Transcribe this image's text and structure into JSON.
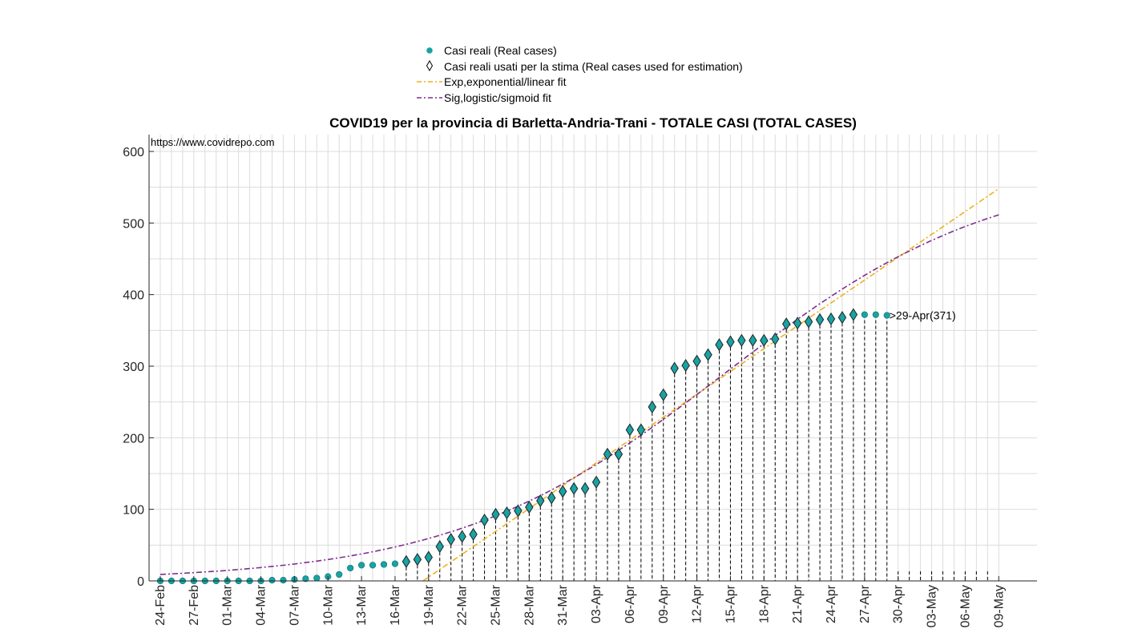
{
  "chart_data": {
    "type": "scatter",
    "title": "COVID19 per la provincia di Barletta-Andria-Trani - TOTALE CASI (TOTAL CASES)",
    "source": "https://www.covidrepo.com",
    "xlabel": "",
    "ylabel": "",
    "ylim": [
      0,
      600
    ],
    "yticks": [
      0,
      100,
      200,
      300,
      400,
      500,
      600
    ],
    "x_start_day": 0,
    "x_end_day": 75,
    "xtick_labels": [
      "24-Feb",
      "27-Feb",
      "01-Mar",
      "04-Mar",
      "07-Mar",
      "10-Mar",
      "13-Mar",
      "16-Mar",
      "19-Mar",
      "22-Mar",
      "25-Mar",
      "28-Mar",
      "31-Mar",
      "03-Apr",
      "06-Apr",
      "09-Apr",
      "12-Apr",
      "15-Apr",
      "18-Apr",
      "21-Apr",
      "24-Apr",
      "27-Apr",
      "30-Apr",
      "03-May",
      "06-May",
      "09-May"
    ],
    "xtick_step_days": 3,
    "grid": true,
    "legend": {
      "position": "top-center",
      "entries": [
        {
          "label": "Casi reali (Real cases)",
          "marker": "filled-circle"
        },
        {
          "label": "Casi reali usati per la stima (Real cases used for estimation)",
          "marker": "diamond"
        },
        {
          "label": "Exp,exponential/linear fit",
          "marker": "dash-dot-line"
        },
        {
          "label": "Sig,logistic/sigmoid fit",
          "marker": "dash-dot-line"
        }
      ]
    },
    "colors": {
      "real": "#17a3a3",
      "real_edge": "#0e6e6e",
      "estimation_edge": "#222222",
      "exp_fit": "#edb120",
      "sig_fit": "#7e2f8e",
      "grid": "#dcdcdc",
      "axis": "#262626"
    },
    "series": [
      {
        "name": "Casi reali (Real cases)",
        "days": [
          0,
          1,
          2,
          3,
          4,
          5,
          6,
          7,
          8,
          9,
          10,
          11,
          12,
          13,
          14,
          15,
          16,
          17,
          18,
          19,
          20,
          21,
          22,
          23,
          24,
          25,
          26,
          27,
          28,
          29,
          30,
          31,
          32,
          33,
          34,
          35,
          36,
          37,
          38,
          39,
          40,
          41,
          42,
          43,
          44,
          45,
          46,
          47,
          48,
          49,
          50,
          51,
          52,
          53,
          54,
          55,
          56,
          57,
          58,
          59,
          60,
          61,
          62,
          63,
          64,
          65
        ],
        "values": [
          0,
          0,
          0,
          0,
          0,
          0,
          0,
          0,
          0,
          0,
          1,
          1,
          2,
          3,
          4,
          6,
          9,
          18,
          22,
          22,
          23,
          24,
          27,
          30,
          33,
          48,
          58,
          62,
          65,
          85,
          93,
          95,
          98,
          103,
          112,
          116,
          125,
          129,
          129,
          138,
          177,
          177,
          211,
          211,
          243,
          260,
          297,
          301,
          307,
          316,
          330,
          334,
          336,
          336,
          336,
          338,
          359,
          360,
          362,
          365,
          366,
          368,
          372,
          372,
          372,
          371
        ]
      },
      {
        "name": "Casi reali usati per la stima (Real cases used for estimation)",
        "start_day": 22,
        "end_day": 62
      },
      {
        "name": "Exp,exponential/linear fit",
        "type": "linear",
        "x0_day": 23.5,
        "slope_per_day": 10.64,
        "end_day": 75
      },
      {
        "name": "Sig,logistic/sigmoid fit",
        "type": "logistic",
        "K": 580,
        "r": 0.082,
        "t0_day": 50.5,
        "start_day": 0,
        "end_day": 75
      }
    ],
    "annotations": [
      {
        "text": ">29-Apr(371)",
        "day": 65,
        "value": 371
      }
    ]
  }
}
